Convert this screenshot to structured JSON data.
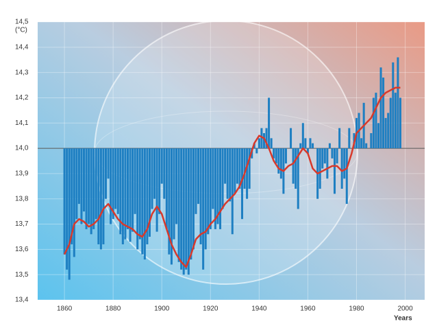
{
  "chart_data": {
    "type": "bar",
    "y_label": "(°C)",
    "x_label": "Years",
    "xlim": [
      1849,
      2008
    ],
    "ylim": [
      13.4,
      14.5
    ],
    "baseline": 14,
    "xticks": [
      1860,
      1880,
      1900,
      1920,
      1940,
      1960,
      1980,
      2000
    ],
    "yticks": [
      {
        "value": 13.4,
        "label": "13,4"
      },
      {
        "value": 13.5,
        "label": "13,5"
      },
      {
        "value": 13.6,
        "label": "13,6"
      },
      {
        "value": 13.7,
        "label": "13,7"
      },
      {
        "value": 13.8,
        "label": "13,8"
      },
      {
        "value": 13.9,
        "label": "13,9"
      },
      {
        "value": 14.0,
        "label": "14,0"
      },
      {
        "value": 14.1,
        "label": "14,1"
      },
      {
        "value": 14.2,
        "label": "14,2"
      },
      {
        "value": 14.3,
        "label": "14,3"
      },
      {
        "value": 14.4,
        "label": "14,4"
      },
      {
        "value": 14.5,
        "label": "14,5"
      }
    ],
    "grid": true,
    "x": [
      1860,
      1861,
      1862,
      1863,
      1864,
      1865,
      1866,
      1867,
      1868,
      1869,
      1870,
      1871,
      1872,
      1873,
      1874,
      1875,
      1876,
      1877,
      1878,
      1879,
      1880,
      1881,
      1882,
      1883,
      1884,
      1885,
      1886,
      1887,
      1888,
      1889,
      1890,
      1891,
      1892,
      1893,
      1894,
      1895,
      1896,
      1897,
      1898,
      1899,
      1900,
      1901,
      1902,
      1903,
      1904,
      1905,
      1906,
      1907,
      1908,
      1909,
      1910,
      1911,
      1912,
      1913,
      1914,
      1915,
      1916,
      1917,
      1918,
      1919,
      1920,
      1921,
      1922,
      1923,
      1924,
      1925,
      1926,
      1927,
      1928,
      1929,
      1930,
      1931,
      1932,
      1933,
      1934,
      1935,
      1936,
      1937,
      1938,
      1939,
      1940,
      1941,
      1942,
      1943,
      1944,
      1945,
      1946,
      1947,
      1948,
      1949,
      1950,
      1951,
      1952,
      1953,
      1954,
      1955,
      1956,
      1957,
      1958,
      1959,
      1960,
      1961,
      1962,
      1963,
      1964,
      1965,
      1966,
      1967,
      1968,
      1969,
      1970,
      1971,
      1972,
      1973,
      1974,
      1975,
      1976,
      1977,
      1978,
      1979,
      1980,
      1981,
      1982,
      1983,
      1984,
      1985,
      1986,
      1987,
      1988,
      1989,
      1990,
      1991,
      1992,
      1993,
      1994,
      1995,
      1996,
      1997,
      1998
    ],
    "series": [
      {
        "type": "bar",
        "color": "#1e7fc2",
        "values": [
          13.58,
          13.52,
          13.48,
          13.62,
          13.57,
          13.72,
          13.78,
          13.7,
          13.75,
          13.68,
          13.7,
          13.66,
          13.68,
          13.72,
          13.62,
          13.6,
          13.62,
          13.8,
          13.88,
          13.7,
          13.72,
          13.76,
          13.74,
          13.66,
          13.62,
          13.64,
          13.68,
          13.63,
          13.67,
          13.74,
          13.6,
          13.64,
          13.58,
          13.56,
          13.62,
          13.65,
          13.76,
          13.8,
          13.67,
          13.74,
          13.86,
          13.8,
          13.68,
          13.58,
          13.54,
          13.64,
          13.7,
          13.55,
          13.52,
          13.5,
          13.52,
          13.5,
          13.56,
          13.6,
          13.74,
          13.78,
          13.62,
          13.52,
          13.6,
          13.66,
          13.68,
          13.76,
          13.68,
          13.7,
          13.68,
          13.76,
          13.86,
          13.8,
          13.79,
          13.66,
          13.82,
          13.86,
          13.84,
          13.72,
          13.84,
          13.8,
          13.84,
          13.96,
          14.02,
          13.98,
          14.04,
          14.08,
          14.06,
          14.08,
          14.2,
          14.04,
          13.96,
          13.94,
          13.9,
          13.88,
          13.82,
          13.94,
          14.0,
          14.08,
          13.86,
          13.84,
          13.76,
          14.02,
          14.1,
          14.04,
          13.98,
          14.04,
          14.02,
          14.0,
          13.8,
          13.84,
          13.92,
          13.94,
          13.88,
          14.02,
          13.96,
          13.82,
          13.94,
          14.08,
          13.84,
          13.88,
          13.78,
          14.08,
          14.0,
          14.06,
          14.12,
          14.14,
          14.04,
          14.18,
          14.02,
          14.0,
          14.06,
          14.2,
          14.22,
          14.1,
          14.32,
          14.28,
          14.12,
          14.14,
          14.2,
          14.34,
          14.22,
          14.36,
          14.2
        ]
      },
      {
        "type": "line",
        "color": "#d8392b",
        "x": [
          1860,
          1862,
          1864,
          1866,
          1868,
          1870,
          1872,
          1874,
          1876,
          1878,
          1880,
          1882,
          1884,
          1886,
          1888,
          1890,
          1892,
          1894,
          1896,
          1898,
          1900,
          1902,
          1904,
          1906,
          1908,
          1910,
          1912,
          1914,
          1916,
          1918,
          1920,
          1922,
          1924,
          1926,
          1928,
          1930,
          1932,
          1934,
          1936,
          1938,
          1940,
          1942,
          1944,
          1946,
          1948,
          1950,
          1952,
          1954,
          1956,
          1958,
          1960,
          1962,
          1964,
          1966,
          1968,
          1970,
          1972,
          1974,
          1976,
          1978,
          1980,
          1982,
          1984,
          1986,
          1988,
          1990,
          1992,
          1994,
          1996,
          1998
        ],
        "values": [
          13.58,
          13.62,
          13.7,
          13.72,
          13.71,
          13.69,
          13.7,
          13.72,
          13.76,
          13.78,
          13.75,
          13.72,
          13.7,
          13.69,
          13.68,
          13.66,
          13.65,
          13.68,
          13.74,
          13.77,
          13.74,
          13.68,
          13.62,
          13.58,
          13.55,
          13.53,
          13.58,
          13.64,
          13.66,
          13.67,
          13.7,
          13.72,
          13.75,
          13.78,
          13.8,
          13.82,
          13.85,
          13.9,
          13.96,
          14.02,
          14.05,
          14.04,
          14.0,
          13.95,
          13.92,
          13.91,
          13.93,
          13.94,
          13.97,
          14.0,
          13.98,
          13.92,
          13.9,
          13.91,
          13.92,
          13.93,
          13.93,
          13.91,
          13.92,
          13.98,
          14.06,
          14.08,
          14.1,
          14.12,
          14.16,
          14.2,
          14.22,
          14.23,
          14.24,
          14.24
        ]
      }
    ]
  }
}
